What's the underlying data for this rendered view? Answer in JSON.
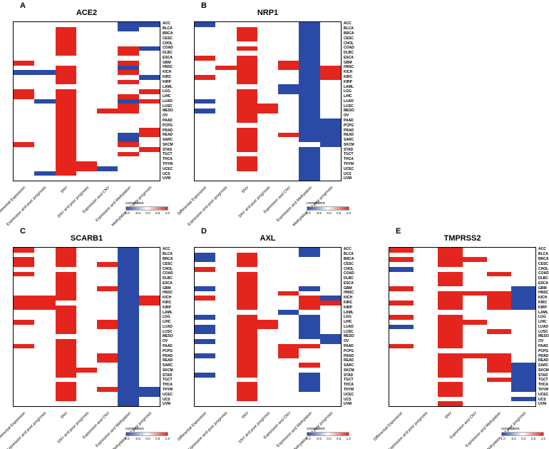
{
  "figure": {
    "background": "#ffffff",
    "positive_color": "#e4251e",
    "negative_color": "#2a4aa5",
    "empty_color": "#ffffff",
    "legend": {
      "label": "correlation",
      "ticks": [
        "-1.0",
        "-0.5",
        "0.0",
        "0.5",
        "1.0"
      ],
      "min": -1.0,
      "max": 1.0
    }
  },
  "rows": [
    "ACC",
    "BLCA",
    "BRCA",
    "CESC",
    "CHOL",
    "COAD",
    "DLBC",
    "ESCA",
    "GBM",
    "HNSC",
    "KICH",
    "KIRC",
    "KIRP",
    "LAML",
    "LGG",
    "LIHC",
    "LUAD",
    "LUSC",
    "MESO",
    "OV",
    "PAAD",
    "PCPG",
    "PRAD",
    "READ",
    "SARC",
    "SKCM",
    "STAD",
    "TGCT",
    "THCA",
    "THYM",
    "UCEC",
    "UCS",
    "UVM"
  ],
  "chart_data": [
    {
      "type": "heatmap",
      "letter": "A",
      "title": "ACE2",
      "columns": [
        "Differential Expression",
        "Expression and poor prognosis",
        "SNV",
        "SNV and poor prognosis",
        "Expression and CNV",
        "Expression and Methylation",
        "Methylation and poor prognosis"
      ],
      "value_key": {
        "R": 1,
        "B": -1,
        ".": 0
      },
      "values": [
        ".....BB",
        "..R..B.",
        "..R....",
        "..R....",
        "..R....",
        "..R..RB",
        "..R..R.",
        ".......",
        "R....R.",
        "..R..B.",
        "BBR..R.",
        "..R...B",
        "..R..R.",
        ".......",
        "R.R...R",
        "R.R..R.",
        ".BR..BR",
        "..R..R.",
        "..R.RR.",
        "..R....",
        "..R....",
        "..R....",
        "..R...R",
        "..R..BR",
        "..R..B.",
        "R.R..R.",
        "..R...R",
        "..R..R.",
        "..R....",
        "..RR...",
        "..RRB..",
        ".BR....",
        "......."
      ]
    },
    {
      "type": "heatmap",
      "letter": "B",
      "title": "NRP1",
      "columns": [
        "Differential Expression",
        "Expression and poor prognosis",
        "SNV",
        "SNV and poor prognosis",
        "Expression and CNV",
        "Expression and Methylation",
        "Methylation and poor prognosis"
      ],
      "value_key": {
        "R": 1,
        "B": -1,
        ".": 0
      },
      "values": [
        "B....B.",
        "..R..B.",
        "..R..B.",
        "..R..B.",
        ".....B.",
        "..R..B.",
        ".....B.",
        "R.R..B.",
        "..R.RB.",
        ".RR.RBR",
        "..R..BR",
        "R.R..BR",
        "..R..B.",
        "....BB.",
        "..R.BB.",
        "..R..B.",
        "B.R..B.",
        "..RR.B.",
        "B.RR.B.",
        "..R..B.",
        "..R..BB",
        ".....BB",
        "..R..BB",
        "..R.RBB",
        "..R..BB",
        "..R...B",
        "..R..B.",
        ".....B.",
        "..R..B.",
        "..R..B.",
        "..R..B.",
        ".....B.",
        ".....B."
      ]
    },
    {
      "type": "heatmap",
      "letter": "C",
      "title": "SCARB1",
      "columns": [
        "Differential Expression",
        "Expression and poor prognosis",
        "SNV",
        "SNV and poor prognosis",
        "Expression and CNV",
        "Expression and Methylation",
        "Methylation and poor prognosis"
      ],
      "value_key": {
        "R": 1,
        "B": -1,
        ".": 0
      },
      "values": [
        "R.R..B.",
        "..R..B.",
        "R.R..B.",
        "R.R.RB.",
        ".....B.",
        "R.R..B.",
        "..R..B.",
        "..R..B.",
        "..R.RB.",
        "..R..B.",
        "RRR..BR",
        "RR...BR",
        "RRR..B.",
        "..R..B.",
        "..R..B.",
        "R.R.RB.",
        "..R.RB.",
        "..R..B.",
        ".....B.",
        "..R..B.",
        "R.R..B.",
        "..R..B.",
        "..R.RB.",
        "..R.RB.",
        "..R..B.",
        "..RR.B.",
        "..R..B.",
        ".....B.",
        "..R..B.",
        "..R.RBB",
        "..R..BB",
        "..R..B.",
        ".....B."
      ]
    },
    {
      "type": "heatmap",
      "letter": "D",
      "title": "AXL",
      "columns": [
        "Differential Expression",
        "Expression and poor prognosis",
        "SNV",
        "SNV and poor prognosis",
        "Expression and CNV",
        "Expression and Methylation",
        "Methylation and poor prognosis"
      ],
      "value_key": {
        "R": 1,
        "B": -1,
        ".": 0
      },
      "values": [
        ".....B.",
        "B.R..B.",
        "B.R....",
        "..R....",
        "R......",
        "..R....",
        "..R....",
        "..R....",
        "B.R..B.",
        "..R.R..",
        "R.R..RB",
        "..R..RR",
        "..R..R.",
        "....B..",
        "B.R..B.",
        "..RR.B.",
        "B.RR.B.",
        "B.R..B.",
        "..R..BB",
        "B.R...B",
        "..R.RR.",
        "..R.R..",
        "B.R.R..",
        "..R....",
        "..R..R.",
        "..R....",
        "B.R..B.",
        ".....B.",
        "..R..B.",
        "..R..B.",
        "..R....",
        "..R....",
        "......."
      ]
    },
    {
      "type": "heatmap",
      "letter": "E",
      "title": "TMPRSS2",
      "columns": [
        "Differential Expression",
        "Expression and poor prognosis",
        "SNV",
        "Expression and CNV",
        "Expression and Methylation",
        "Methylation and poor prognosis"
      ],
      "value_key": {
        "R": 1,
        "B": -1,
        ".": 0
      },
      "values": [
        "R.R...",
        "..R...",
        "R.RR..",
        "..R...",
        "B.....",
        "..R.R.",
        "..R...",
        "..R...",
        "R....B",
        "..RRRB",
        "..R.RB",
        "R.R.RB",
        "..R.RB",
        "......",
        "R.R...",
        "..RR..",
        "B.R...",
        "..R.R.",
        "..R...",
        "..R...",
        "R.R...",
        "......",
        "..RRR.",
        "..R.R.",
        "..R.RB",
        "..R.RB",
        "..R..B",
        "....RB",
        "..R..B",
        "..R..B",
        "..R...",
        ".....B",
        "..R..."
      ]
    }
  ]
}
